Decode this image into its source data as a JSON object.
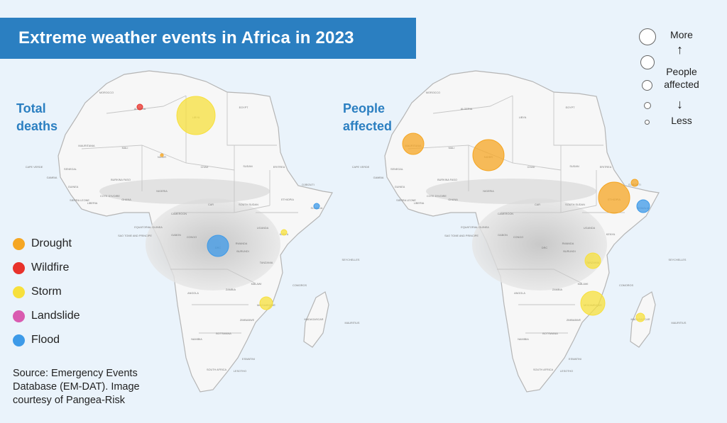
{
  "title": "Extreme weather events in Africa in 2023",
  "panels": [
    {
      "label_line1": "Total",
      "label_line2": "deaths"
    },
    {
      "label_line1": "People",
      "label_line2": "affected"
    }
  ],
  "legend": [
    {
      "label": "Drought",
      "color": "#f5a623"
    },
    {
      "label": "Wildfire",
      "color": "#e8322b"
    },
    {
      "label": "Storm",
      "color": "#f7e03c"
    },
    {
      "label": "Landslide",
      "color": "#d95bb0"
    },
    {
      "label": "Flood",
      "color": "#3d9ae8"
    }
  ],
  "size_legend": {
    "more": "More",
    "metric_line1": "People",
    "metric_line2": "affected",
    "less": "Less"
  },
  "source": "Source: Emergency Events Database (EM-DAT). Image courtesy of Pangea-Risk",
  "map_labels": [
    "MOROCCO",
    "ALGERIA",
    "LIBYA",
    "EGYPT",
    "MAURITANIA",
    "MALI",
    "NIGER",
    "CHAD",
    "SUDAN",
    "ERITREA",
    "DJIBOUTI",
    "ETHIOPIA",
    "SOMALIA",
    "KENYA",
    "SOUTH SUDAN",
    "CAR",
    "CAMEROON",
    "NIGERIA",
    "DRC",
    "ANGOLA",
    "ZAMBIA",
    "TANZANIA",
    "MOZAMBIQUE",
    "ZIMBABWE",
    "BOTSWANA",
    "NAMIBIA",
    "SOUTH AFRICA",
    "MADAGASCAR",
    "GABON",
    "CONGO",
    "UGANDA",
    "RWANDA",
    "BURUNDI",
    "MALAWI",
    "CAPE VERDE",
    "SENEGAL",
    "GAMBIA",
    "GUINEA",
    "SIERRA LEONE",
    "LIBERIA",
    "COTE D'IVOIRE",
    "GHANA",
    "BURKINA FASO",
    "LESOTHO",
    "ESWATINI",
    "SEYCHELLES",
    "COMOROS",
    "MAURITIUS",
    "EQUATORIAL GUINEA",
    "SAO TOME AND PRINCIPE"
  ],
  "events_deaths": [
    {
      "country": "LIBYA",
      "type": "Storm",
      "color": "#f7e03c",
      "size": 27
    },
    {
      "country": "DRC",
      "type": "Flood",
      "color": "#3d9ae8",
      "size": 15
    },
    {
      "country": "MOZAMBIQUE",
      "type": "Storm",
      "color": "#f7e03c",
      "size": 9
    },
    {
      "country": "ALGERIA",
      "type": "Wildfire",
      "color": "#e8322b",
      "size": 4
    },
    {
      "country": "SOMALIA",
      "type": "Flood",
      "color": "#3d9ae8",
      "size": 4
    },
    {
      "country": "KENYA",
      "type": "Storm",
      "color": "#f7e03c",
      "size": 4
    },
    {
      "country": "NIGER",
      "type": "Drought",
      "color": "#f5a623",
      "size": 2
    }
  ],
  "events_affected": [
    {
      "country": "NIGER",
      "type": "Drought",
      "color": "#f5a623",
      "size": 22
    },
    {
      "country": "ETHIOPIA",
      "type": "Drought",
      "color": "#f5a623",
      "size": 22
    },
    {
      "country": "MAURITANIA",
      "type": "Drought",
      "color": "#f5a623",
      "size": 15
    },
    {
      "country": "MOZAMBIQUE",
      "type": "Storm",
      "color": "#f7e03c",
      "size": 17
    },
    {
      "country": "TANZANIA",
      "type": "Storm",
      "color": "#f7e03c",
      "size": 11
    },
    {
      "country": "SOMALIA",
      "type": "Flood",
      "color": "#3d9ae8",
      "size": 9
    },
    {
      "country": "DJIBOUTI",
      "type": "Drought",
      "color": "#f5a623",
      "size": 5
    },
    {
      "country": "MADAGASCAR",
      "type": "Storm",
      "color": "#f7e03c",
      "size": 6
    }
  ]
}
